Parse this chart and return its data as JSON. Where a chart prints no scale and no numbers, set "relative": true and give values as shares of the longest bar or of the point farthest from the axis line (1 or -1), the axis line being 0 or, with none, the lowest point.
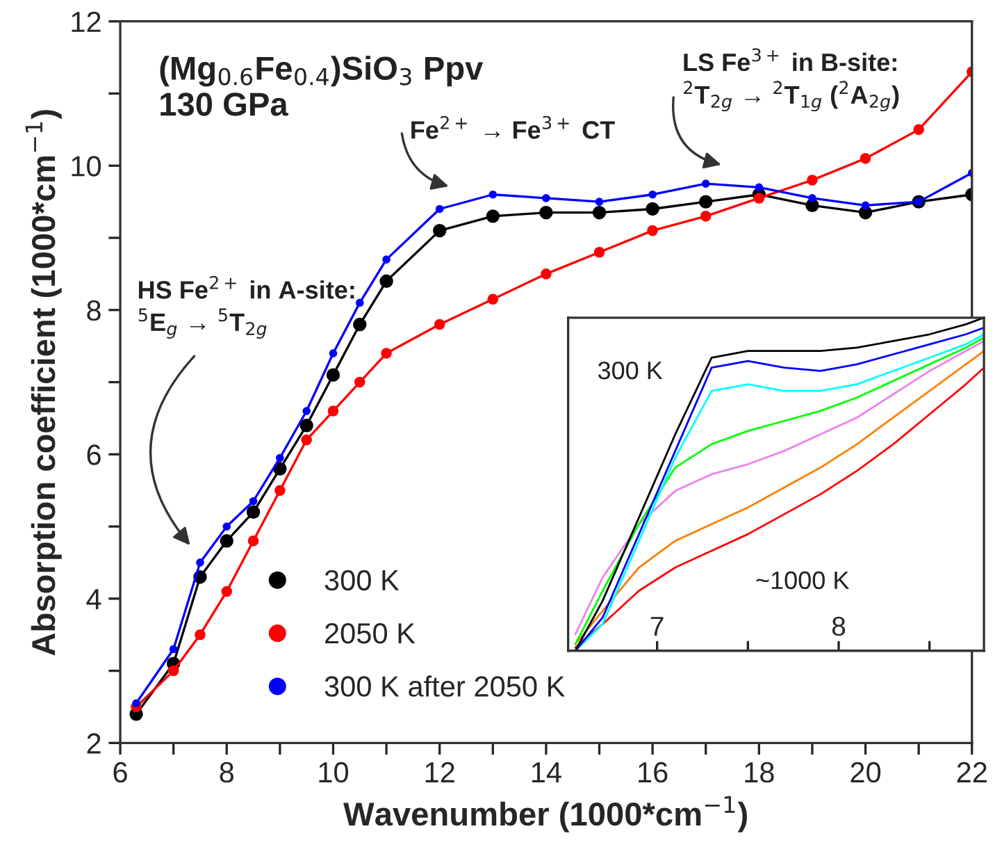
{
  "chart_data": [
    {
      "type": "line",
      "xlabel": "Wavenumber (1000*cm$^{−1}$)",
      "ylabel": "Absorption coefficient (1000*cm$^{−1}$)",
      "xlim": [
        6,
        22
      ],
      "ylim": [
        2,
        12
      ],
      "xticks": [
        6,
        {
          "value": 7,
          "label": null
        },
        8,
        {
          "value": 9,
          "label": null
        },
        10,
        {
          "value": 11,
          "label": null
        },
        12,
        {
          "value": 13,
          "label": null
        },
        14,
        {
          "value": 15,
          "label": null
        },
        16,
        {
          "value": 17,
          "label": null
        },
        18,
        {
          "value": 19,
          "label": null
        },
        20,
        {
          "value": 21,
          "label": null
        },
        22
      ],
      "yticks": [
        2,
        {
          "value": 3,
          "label": null
        },
        4,
        {
          "value": 5,
          "label": null
        },
        6,
        {
          "value": 7,
          "label": null
        },
        8,
        {
          "value": 9,
          "label": null
        },
        10,
        {
          "value": 11,
          "label": null
        },
        12
      ],
      "x": [
        6.3,
        7,
        7.5,
        8,
        8.5,
        9,
        9.5,
        10,
        10.5,
        11,
        12,
        13,
        14,
        15,
        16,
        17,
        18,
        19,
        20,
        21,
        22
      ],
      "marker": "circle",
      "legend": "bottom left",
      "grid": false,
      "series": [
        {
          "name": "300 K",
          "color": "#000000",
          "values": [
            2.4,
            3.1,
            4.3,
            4.8,
            5.2,
            5.8,
            6.4,
            7.1,
            7.8,
            8.4,
            9.1,
            9.3,
            9.35,
            9.35,
            9.4,
            9.5,
            9.6,
            9.45,
            9.35,
            9.5,
            9.6
          ]
        },
        {
          "name": "2050 K",
          "color": "#ff0000",
          "values": [
            2.5,
            3.0,
            3.5,
            4.1,
            4.8,
            5.5,
            6.2,
            6.6,
            7.0,
            7.4,
            7.8,
            8.15,
            8.5,
            8.8,
            9.1,
            9.3,
            9.55,
            9.8,
            10.1,
            10.5,
            11.3
          ]
        },
        {
          "name": "300 K after 2050 K",
          "color": "#0000ff",
          "values": [
            2.55,
            3.3,
            4.5,
            5.0,
            5.35,
            5.95,
            6.6,
            7.4,
            8.1,
            8.7,
            9.4,
            9.6,
            9.55,
            9.5,
            9.6,
            9.75,
            9.7,
            9.55,
            9.45,
            9.5,
            9.9
          ]
        }
      ],
      "annotations": [
        "(Mg$_{0.6}$Fe$_{0.4}$)SiO$_{3}$ Ppv\n130 GPa",
        "HS Fe$^{2+}$ in A-site:\n$^{5}$E$_{g}$ → $^{5}$T$_{2g}$",
        "Fe$^{2+}$ → Fe$^{3+}$ CT",
        "LS Fe$^{3+}$ in B-site:\n$^{2}$T$_{2g}$ → $^{2}$T$_{1g}$ ($^{2}$A$_{2g}$)"
      ]
    },
    {
      "type": "line",
      "relative": true,
      "xlim": [
        6.51,
        8.8
      ],
      "xticks": [
        7,
        {
          "value": 7.5,
          "label": null
        },
        8,
        {
          "value": 8.5,
          "label": null
        }
      ],
      "x": [
        6.55,
        6.7,
        6.9,
        7.1,
        7.3,
        7.5,
        7.7,
        7.9,
        8.1,
        8.3,
        8.5,
        8.7,
        8.8
      ],
      "tick_labels": "x",
      "marker": "none",
      "grid": false,
      "legend": false,
      "series": [
        {
          "color": "#ff0000",
          "values": [
            0.01,
            0.08,
            0.18,
            0.25,
            0.3,
            0.35,
            0.41,
            0.47,
            0.54,
            0.62,
            0.71,
            0.8,
            0.85
          ]
        },
        {
          "color": "#ff8000",
          "values": [
            0.02,
            0.12,
            0.25,
            0.33,
            0.38,
            0.43,
            0.49,
            0.55,
            0.62,
            0.7,
            0.78,
            0.86,
            0.9
          ]
        },
        {
          "color": "#ee82ee",
          "values": [
            0.05,
            0.22,
            0.38,
            0.48,
            0.53,
            0.56,
            0.6,
            0.65,
            0.7,
            0.77,
            0.84,
            0.9,
            0.93
          ]
        },
        {
          "color": "#00ff00",
          "values": [
            0.02,
            0.18,
            0.38,
            0.55,
            0.62,
            0.66,
            0.69,
            0.72,
            0.76,
            0.81,
            0.86,
            0.91,
            0.94
          ]
        },
        {
          "color": "#00ffff",
          "values": [
            0,
            0.08,
            0.33,
            0.58,
            0.78,
            0.8,
            0.78,
            0.78,
            0.8,
            0.84,
            0.88,
            0.92,
            0.95
          ]
        },
        {
          "color": "#0000ff",
          "values": [
            0,
            0.1,
            0.35,
            0.6,
            0.85,
            0.87,
            0.85,
            0.84,
            0.86,
            0.89,
            0.92,
            0.95,
            0.97
          ]
        },
        {
          "color": "#000000",
          "values": [
            0,
            0.15,
            0.4,
            0.65,
            0.88,
            0.9,
            0.9,
            0.9,
            0.91,
            0.93,
            0.95,
            0.98,
            1.0
          ]
        }
      ],
      "annotations": [
        "300 K",
        "~1000 K"
      ]
    }
  ]
}
